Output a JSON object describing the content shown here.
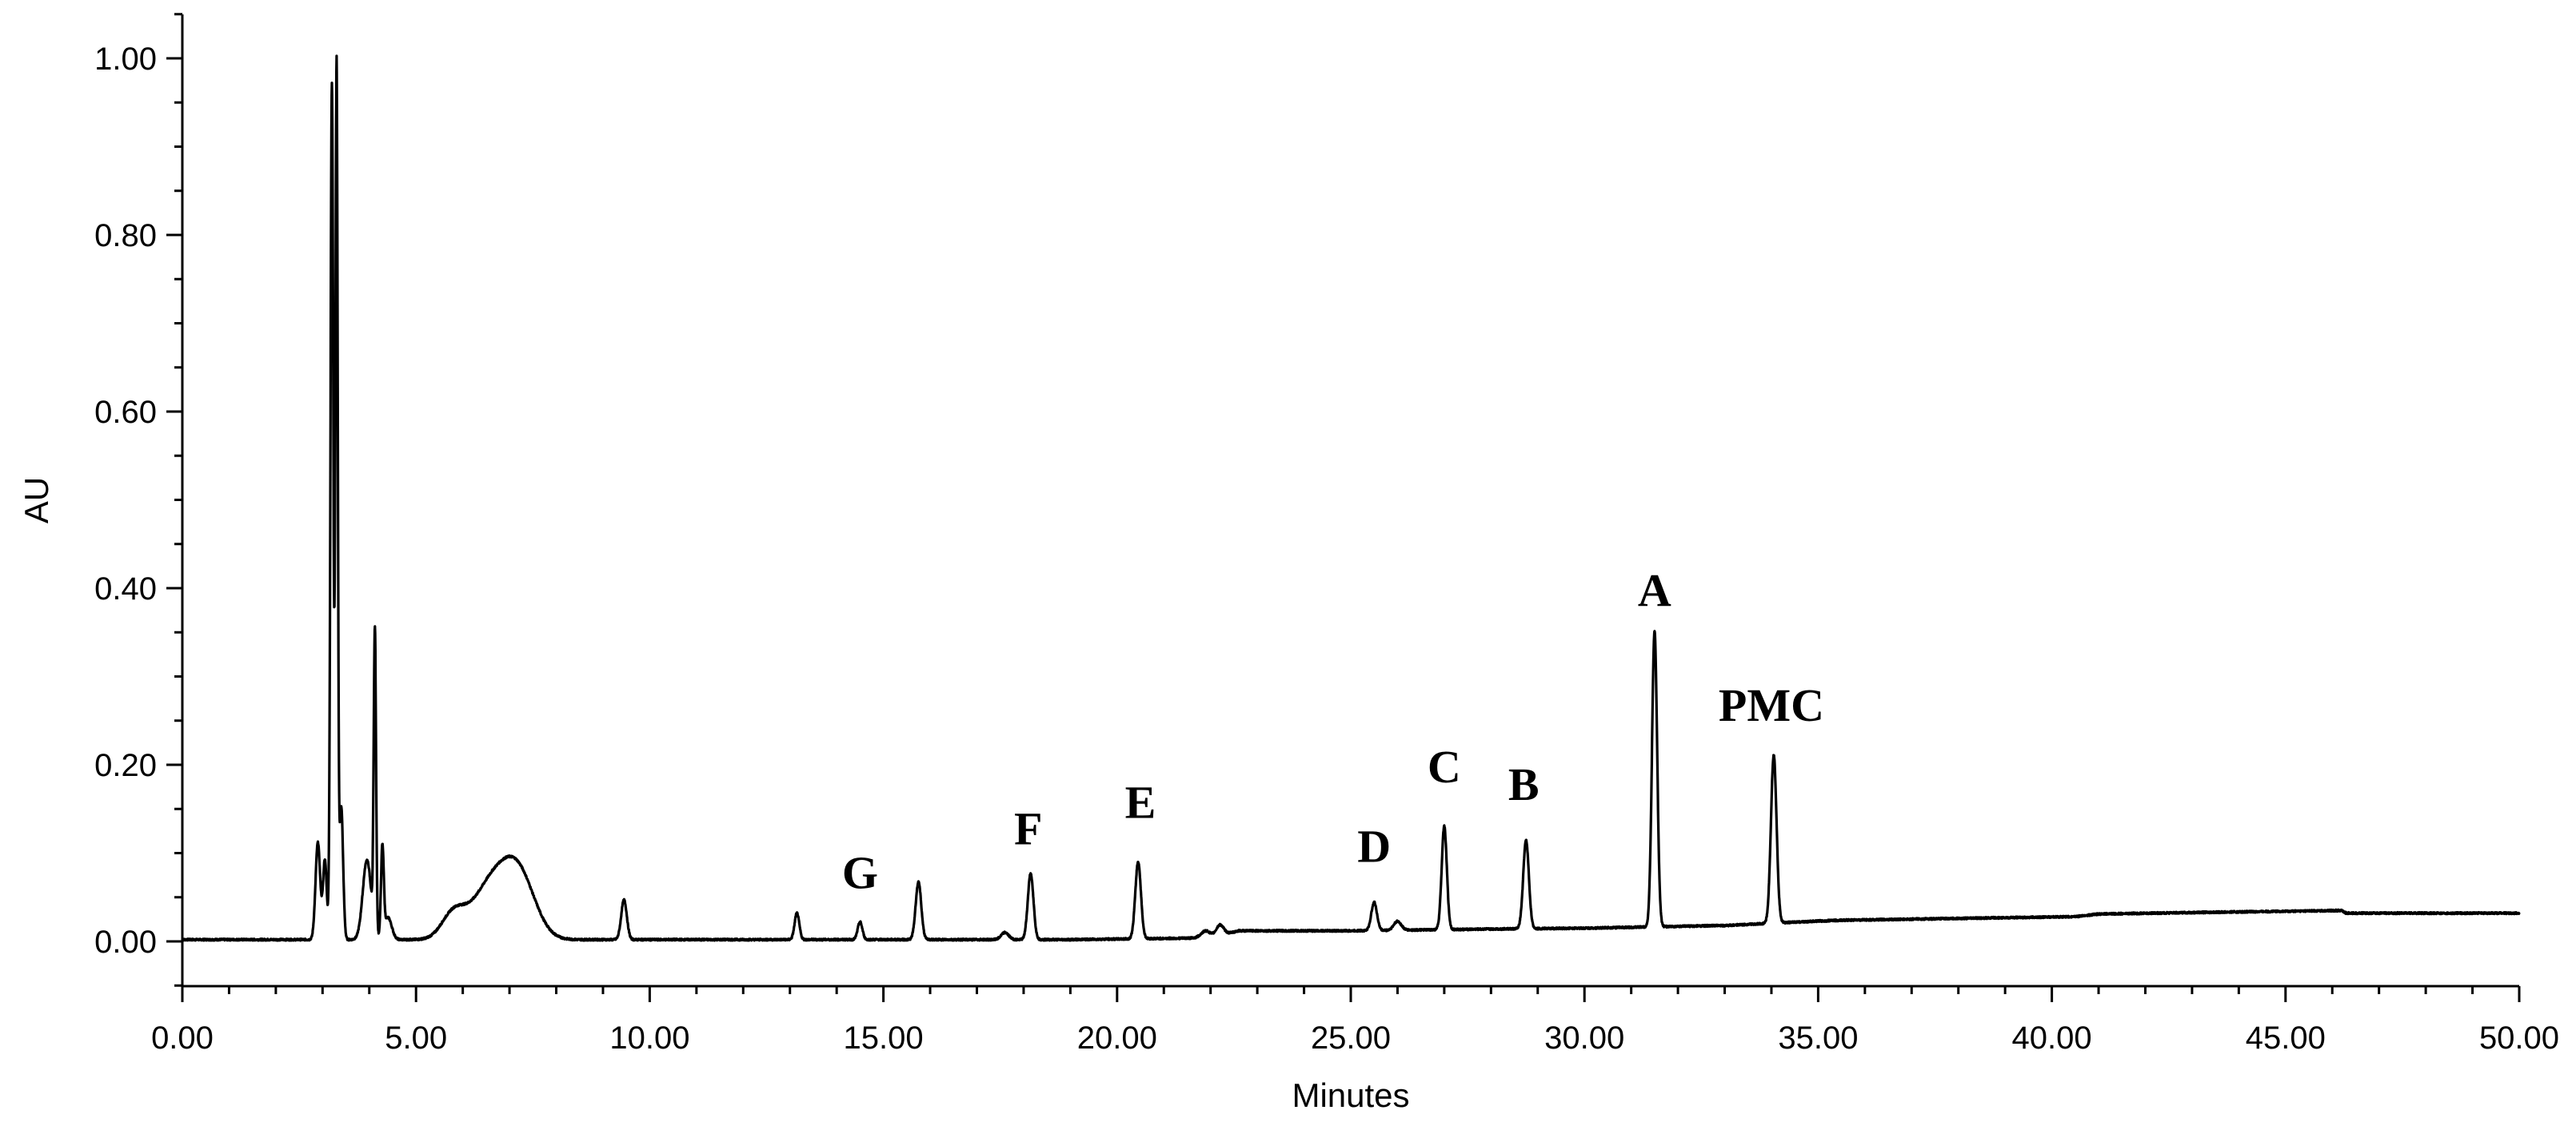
{
  "chart_data": {
    "type": "line",
    "xlabel": "Minutes",
    "ylabel": "AU",
    "xlim": [
      0,
      50
    ],
    "ylim": [
      -0.05,
      1.05
    ],
    "grid": false,
    "x_ticks": [
      "0.00",
      "5.00",
      "10.00",
      "15.00",
      "20.00",
      "25.00",
      "30.00",
      "35.00",
      "40.00",
      "45.00",
      "50.00"
    ],
    "x_tick_values": [
      0,
      5,
      10,
      15,
      20,
      25,
      30,
      35,
      40,
      45,
      50
    ],
    "y_ticks": [
      "0.00",
      "0.20",
      "0.40",
      "0.60",
      "0.80",
      "1.00"
    ],
    "y_tick_values": [
      0,
      0.2,
      0.4,
      0.6,
      0.8,
      1.0
    ],
    "series": [
      {
        "color": "#000000",
        "baseline": [
          [
            0,
            0.002
          ],
          [
            2.4,
            0.002
          ],
          [
            5.0,
            0.002
          ],
          [
            9.0,
            0.002
          ],
          [
            12.0,
            0.002
          ],
          [
            15.0,
            0.002
          ],
          [
            19.0,
            0.002
          ],
          [
            22.0,
            0.004
          ],
          [
            22.6,
            0.012
          ],
          [
            25.0,
            0.012
          ],
          [
            26.5,
            0.013
          ],
          [
            28.0,
            0.014
          ],
          [
            30.0,
            0.015
          ],
          [
            31.0,
            0.016
          ],
          [
            33.0,
            0.018
          ],
          [
            35.0,
            0.023
          ],
          [
            35.5,
            0.024
          ],
          [
            38.0,
            0.026
          ],
          [
            40.5,
            0.028
          ],
          [
            41.0,
            0.031
          ],
          [
            43.4,
            0.033
          ],
          [
            46.2,
            0.035
          ],
          [
            46.3,
            0.032
          ],
          [
            50.0,
            0.032
          ]
        ],
        "peaks": [
          {
            "rt": 2.9,
            "height": 0.11,
            "width": 0.05
          },
          {
            "rt": 3.05,
            "height": 0.09,
            "width": 0.04
          },
          {
            "rt": 3.2,
            "height": 0.97,
            "width": 0.03
          },
          {
            "rt": 3.3,
            "height": 0.99,
            "width": 0.025
          },
          {
            "rt": 3.4,
            "height": 0.15,
            "width": 0.04
          },
          {
            "rt": 3.95,
            "height": 0.09,
            "width": 0.09
          },
          {
            "rt": 4.12,
            "height": 0.34,
            "width": 0.025
          },
          {
            "rt": 4.28,
            "height": 0.1,
            "width": 0.03
          },
          {
            "rt": 4.4,
            "height": 0.025,
            "width": 0.08
          },
          {
            "rt": 5.8,
            "height": 0.028,
            "width": 0.25
          },
          {
            "rt": 6.6,
            "height": 0.06,
            "width": 0.4
          },
          {
            "rt": 7.2,
            "height": 0.068,
            "width": 0.35
          },
          {
            "rt": 9.45,
            "height": 0.045,
            "width": 0.06
          },
          {
            "rt": 13.15,
            "height": 0.03,
            "width": 0.05
          },
          {
            "rt": 14.5,
            "height": 0.02,
            "width": 0.05
          },
          {
            "rt": 15.75,
            "height": 0.065,
            "width": 0.06
          },
          {
            "rt": 17.6,
            "height": 0.008,
            "width": 0.08
          },
          {
            "rt": 18.15,
            "height": 0.075,
            "width": 0.06
          },
          {
            "rt": 20.45,
            "height": 0.087,
            "width": 0.06
          },
          {
            "rt": 21.9,
            "height": 0.008,
            "width": 0.1
          },
          {
            "rt": 22.2,
            "height": 0.012,
            "width": 0.08
          },
          {
            "rt": 25.5,
            "height": 0.032,
            "width": 0.06
          },
          {
            "rt": 26.0,
            "height": 0.01,
            "width": 0.08
          },
          {
            "rt": 27.0,
            "height": 0.117,
            "width": 0.055
          },
          {
            "rt": 28.75,
            "height": 0.1,
            "width": 0.06
          },
          {
            "rt": 31.5,
            "height": 0.335,
            "width": 0.055
          },
          {
            "rt": 34.05,
            "height": 0.19,
            "width": 0.06
          }
        ]
      }
    ],
    "annotations": [
      {
        "text": "G",
        "x": 14.5,
        "y": 0.06
      },
      {
        "text": "F",
        "x": 18.1,
        "y": 0.11
      },
      {
        "text": "E",
        "x": 20.5,
        "y": 0.14
      },
      {
        "text": "D",
        "x": 25.5,
        "y": 0.09
      },
      {
        "text": "C",
        "x": 27.0,
        "y": 0.18
      },
      {
        "text": "B",
        "x": 28.7,
        "y": 0.16
      },
      {
        "text": "A",
        "x": 31.5,
        "y": 0.38
      },
      {
        "text": "PMC",
        "x": 34.0,
        "y": 0.25
      }
    ]
  }
}
